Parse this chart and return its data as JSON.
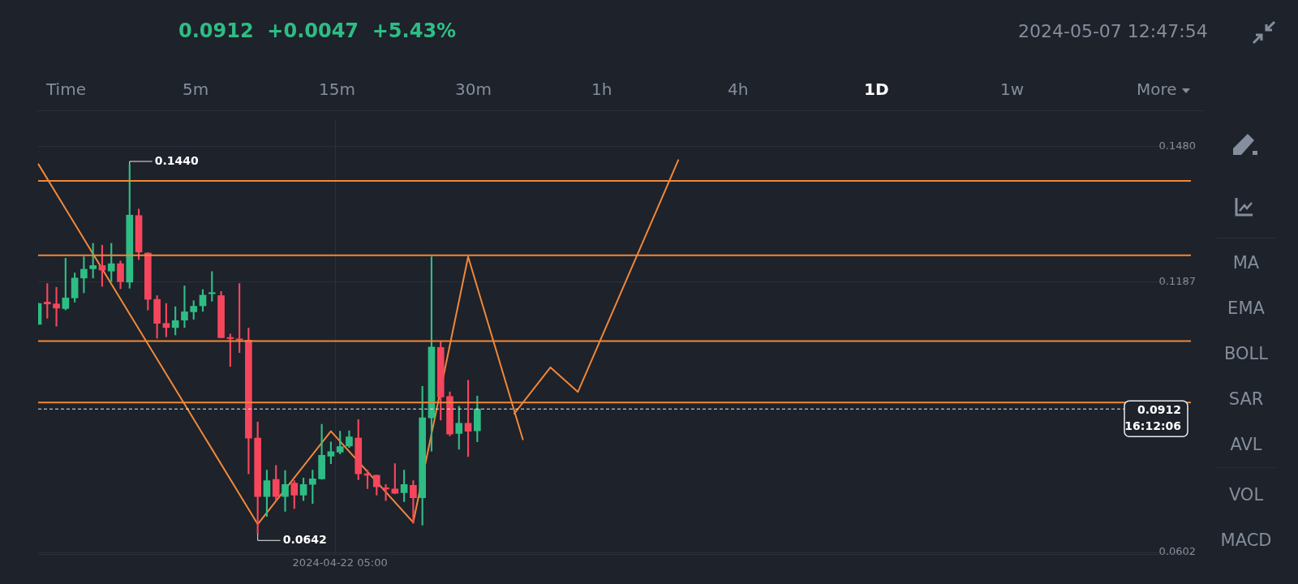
{
  "chart_data": {
    "type": "candlestick",
    "subtitle": "0.0912  +0.0047  +5.43%",
    "categories": [
      null,
      null,
      null,
      null,
      null,
      null,
      null,
      null,
      null,
      null,
      null,
      null,
      null,
      null,
      null,
      null,
      null,
      null,
      null,
      null,
      null,
      null,
      null,
      null,
      null,
      null,
      null,
      null,
      null,
      null,
      null,
      null,
      null,
      "2024-04-22 05:00",
      null,
      null,
      null,
      null,
      null,
      null,
      null,
      null,
      null,
      null,
      null,
      null,
      null,
      null,
      null,
      null,
      null,
      null,
      null,
      null,
      null,
      null,
      null,
      null,
      null,
      null,
      null,
      null,
      null,
      null,
      null,
      null,
      null,
      null,
      null,
      null,
      null,
      null,
      null,
      null,
      null,
      null,
      null,
      null,
      null,
      null,
      null,
      null,
      null,
      null,
      null,
      null,
      null,
      null,
      null,
      null,
      null,
      null,
      null,
      null,
      null,
      null,
      null,
      null,
      null,
      null,
      null,
      null,
      null,
      null,
      null,
      null,
      null,
      null,
      null,
      null,
      null,
      null,
      null,
      null,
      null,
      null,
      null,
      null,
      null,
      null,
      null,
      null,
      null,
      null,
      null,
      null,
      null
    ],
    "ohlc": [
      [
        0.1095,
        0.1141,
        0.1095,
        0.114
      ],
      [
        0.1143,
        0.1183,
        0.1108,
        0.1139
      ],
      [
        0.1139,
        0.1175,
        0.1091,
        0.113
      ],
      [
        0.1129,
        0.1238,
        0.1126,
        0.1152
      ],
      [
        0.1152,
        0.1206,
        0.1143,
        0.1195
      ],
      [
        0.1195,
        0.1241,
        0.1163,
        0.1214
      ],
      [
        0.1215,
        0.127,
        0.1195,
        0.1222
      ],
      [
        0.1222,
        0.1266,
        0.1177,
        0.1212
      ],
      [
        0.121,
        0.127,
        0.1187,
        0.1226
      ],
      [
        0.1226,
        0.1232,
        0.1172,
        0.1187
      ],
      [
        0.1186,
        0.144,
        0.1173,
        0.1331
      ],
      [
        0.133,
        0.1344,
        0.1235,
        0.1251
      ],
      [
        0.1249,
        0.125,
        0.1126,
        0.1149
      ],
      [
        0.1149,
        0.1157,
        0.1065,
        0.1097
      ],
      [
        0.1097,
        0.114,
        0.1068,
        0.1088
      ],
      [
        0.1088,
        0.1133,
        0.1072,
        0.1103
      ],
      [
        0.1104,
        0.1178,
        0.1088,
        0.1122
      ],
      [
        0.1122,
        0.1146,
        0.1106,
        0.1134
      ],
      [
        0.1135,
        0.117,
        0.1123,
        0.1158
      ],
      [
        0.1161,
        0.1209,
        0.1145,
        0.1163
      ],
      [
        0.1157,
        0.1166,
        0.1066,
        0.1066
      ],
      [
        0.1066,
        0.1074,
        0.1004,
        0.1064
      ],
      [
        0.1062,
        0.1183,
        0.1034,
        0.1061
      ],
      [
        0.1061,
        0.1087,
        0.0772,
        0.0849
      ],
      [
        0.0849,
        0.0884,
        0.0642,
        0.0723
      ],
      [
        0.0723,
        0.078,
        0.068,
        0.0757
      ],
      [
        0.076,
        0.079,
        0.0714,
        0.0723
      ],
      [
        0.0723,
        0.0779,
        0.0691,
        0.0749
      ],
      [
        0.0752,
        0.0757,
        0.0697,
        0.0726
      ],
      [
        0.0726,
        0.0763,
        0.0714,
        0.0749
      ],
      [
        0.0749,
        0.078,
        0.0708,
        0.0761
      ],
      [
        0.0761,
        0.0879,
        0.076,
        0.0812
      ],
      [
        0.081,
        0.0841,
        0.0794,
        0.082
      ],
      [
        0.0819,
        0.0864,
        0.0815,
        0.0831
      ],
      [
        0.0832,
        0.0865,
        0.0829,
        0.0852
      ],
      [
        0.0849,
        0.0889,
        0.0759,
        0.0772
      ],
      [
        0.0772,
        0.078,
        0.074,
        0.0769
      ],
      [
        0.0769,
        0.0769,
        0.0726,
        0.0744
      ],
      [
        0.0742,
        0.0749,
        0.0714,
        0.0739
      ],
      [
        0.0739,
        0.0794,
        0.0729,
        0.073
      ],
      [
        0.0731,
        0.078,
        0.0712,
        0.0749
      ],
      [
        0.0747,
        0.0757,
        0.0665,
        0.072
      ],
      [
        0.072,
        0.0961,
        0.0661,
        0.0893
      ],
      [
        0.0893,
        0.1241,
        0.0821,
        0.1046
      ],
      [
        0.1045,
        0.1058,
        0.0888,
        0.0938
      ],
      [
        0.0939,
        0.0949,
        0.0854,
        0.0858
      ],
      [
        0.0859,
        0.0918,
        0.0825,
        0.0881
      ],
      [
        0.0881,
        0.0974,
        0.0809,
        0.0864
      ],
      [
        0.0865,
        0.094,
        0.0841,
        0.0912
      ],
      null,
      null,
      null,
      null,
      null,
      null,
      null,
      null,
      null,
      null,
      null,
      null,
      null,
      null,
      null,
      null,
      null,
      null,
      null,
      null,
      null,
      null,
      null,
      null,
      null,
      null,
      null,
      null,
      null,
      null,
      null,
      null,
      null,
      null,
      null,
      null,
      null,
      null,
      null,
      null,
      null,
      null,
      null,
      null,
      null,
      null,
      null,
      null,
      null,
      null,
      null,
      null,
      null,
      null,
      null,
      null,
      null,
      null,
      null,
      null,
      null,
      null,
      null,
      null,
      null,
      null,
      null,
      null,
      null,
      null,
      null,
      null,
      null,
      null,
      null,
      null,
      null,
      null
    ],
    "series": [
      {
        "type": "line",
        "color": "#f0883a",
        "values": [
          0.1442,
          null,
          null,
          null,
          null,
          null,
          null,
          null,
          null,
          null,
          null,
          null,
          null,
          null,
          null,
          null,
          null,
          null,
          null,
          null,
          null,
          null,
          null,
          null,
          0.0663,
          null,
          null,
          null,
          null,
          null,
          null,
          null,
          0.0864,
          null,
          null,
          null,
          null,
          null,
          null,
          null,
          null,
          0.0667,
          null,
          null,
          null,
          null,
          null,
          0.1241,
          null,
          null,
          null,
          null,
          null,
          0.0845,
          null,
          null,
          null,
          null,
          null,
          null,
          null,
          null,
          null,
          null,
          null,
          null,
          null,
          null,
          null,
          null,
          null,
          null,
          null,
          null,
          null,
          null,
          null,
          null,
          null,
          null,
          null,
          null,
          null,
          null,
          null,
          null,
          null,
          null,
          null,
          null,
          null,
          null,
          null,
          null,
          null,
          null,
          null,
          null,
          null,
          null,
          null,
          null,
          null,
          null,
          null,
          null,
          null,
          null,
          null,
          null,
          null,
          null,
          null,
          null,
          null,
          null,
          null,
          null,
          null,
          null,
          null,
          null,
          null,
          null,
          null,
          null,
          null
        ]
      },
      {
        "type": "line",
        "color": "#f0883a",
        "values": [
          null,
          null,
          null,
          null,
          null,
          null,
          null,
          null,
          null,
          null,
          null,
          null,
          null,
          null,
          null,
          null,
          null,
          null,
          null,
          null,
          null,
          null,
          null,
          null,
          null,
          null,
          null,
          null,
          null,
          null,
          null,
          null,
          null,
          null,
          null,
          null,
          null,
          null,
          null,
          null,
          null,
          null,
          null,
          null,
          null,
          null,
          null,
          null,
          null,
          null,
          null,
          null,
          0.0901,
          null,
          null,
          null,
          0.1002,
          null,
          null,
          0.0949,
          null,
          null,
          null,
          null,
          null,
          null,
          null,
          null,
          null,
          null,
          0.1451,
          null,
          null,
          null,
          null,
          null,
          null,
          null,
          null,
          null,
          null,
          null,
          null,
          null,
          null,
          null,
          null,
          null,
          null,
          null,
          null,
          null,
          null,
          null,
          null,
          null,
          null,
          null,
          null,
          null,
          null,
          null,
          null,
          null,
          null,
          null,
          null,
          null,
          null,
          null,
          null,
          null,
          null,
          null,
          null,
          null,
          null,
          null,
          null,
          null,
          null,
          null,
          null,
          null,
          null,
          null,
          null
        ]
      }
    ],
    "ylim": [
      0.0598,
      0.1535
    ],
    "yticks": [
      {
        "value": 0.148,
        "label": "0.1480"
      },
      0.1187,
      0.0602
    ],
    "ref_lines": [
      {
        "axis": "y",
        "value": 0.1405,
        "color": "#f0883a"
      },
      {
        "axis": "y",
        "value": 0.1244,
        "color": "#f0883a"
      },
      {
        "axis": "y",
        "value": 0.1059,
        "color": "#f0883a"
      },
      {
        "axis": "y",
        "value": 0.0926,
        "color": "#f0883a"
      },
      {
        "axis": "y",
        "value": 0.0912,
        "label": "0.0912",
        "color": "#eaecef",
        "line_style": "dashed"
      }
    ],
    "annotations": [
      "2024-05-07 12:47:54",
      "Time",
      "5m",
      "15m",
      "30m",
      "1h",
      "4h",
      "1D",
      "1w",
      "More",
      "MA",
      "EMA",
      "BOLL",
      "SAR",
      "AVL",
      "VOL",
      "MACD",
      "16:12:06",
      "0.1440",
      "0.0642"
    ],
    "grid": true,
    "legend": false,
    "marker": "none"
  }
}
